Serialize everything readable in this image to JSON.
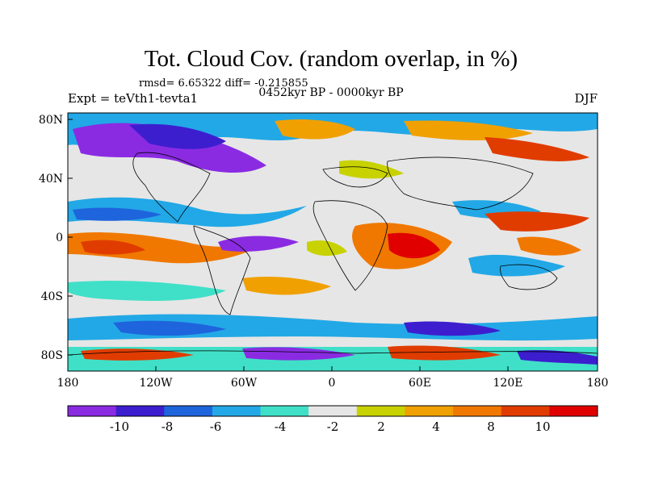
{
  "title": "Tot. Cloud Cov. (random overlap, in %)",
  "stats": "rmsd= 6.65322 diff= -0.215855",
  "period": "0452kyr BP - 0000kyr BP",
  "experiment": "Expt = teVth1-tevta1",
  "season": "DJF",
  "lat_labels": [
    "80N",
    "40N",
    "0",
    "40S",
    "80S"
  ],
  "lon_labels": [
    "180",
    "120W",
    "60W",
    "0",
    "60E",
    "120E",
    "180"
  ],
  "colorbar": {
    "colors": [
      "#8a2be2",
      "#3c1ecf",
      "#1e64dc",
      "#22a8e6",
      "#40e0c8",
      "#e6e6e6",
      "#c8d200",
      "#f0a000",
      "#f07800",
      "#e03c00",
      "#e00000"
    ],
    "labels": [
      "-10",
      "-8",
      "-6",
      "-4",
      "-2",
      "2",
      "4",
      "8",
      "10"
    ]
  }
}
